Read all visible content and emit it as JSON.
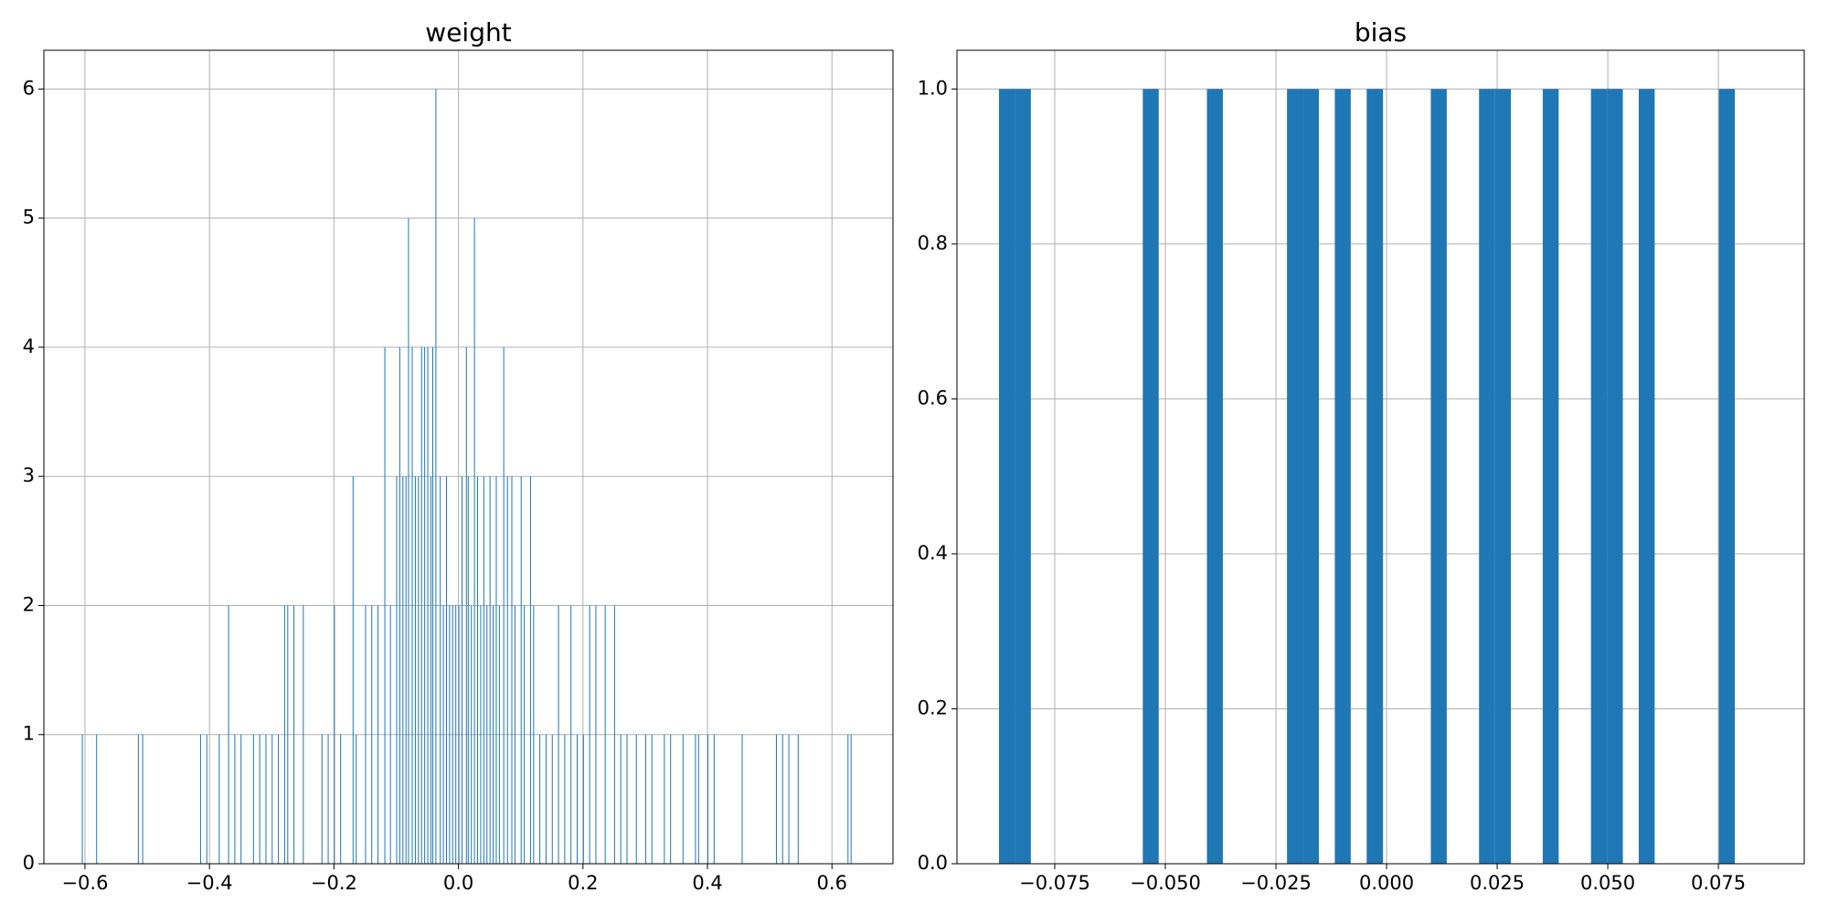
{
  "chart_data": [
    {
      "type": "histogram",
      "title": "weight",
      "color": "#1f77b4",
      "grid": true,
      "xlim": [
        -0.666,
        0.698
      ],
      "ylim": [
        0,
        6.3
      ],
      "xticks": [
        {
          "value": -0.6,
          "label": "−0.6"
        },
        {
          "value": -0.4,
          "label": "−0.4"
        },
        {
          "value": -0.2,
          "label": "−0.2"
        },
        {
          "value": 0,
          "label": "0.0"
        },
        0.2,
        0.4,
        0.6
      ],
      "yticks": [
        0,
        1,
        2,
        3,
        4,
        5,
        6
      ],
      "bins": [
        -0.605,
        -0.6038,
        -0.582,
        -0.5808,
        -0.515,
        -0.5138,
        -0.508,
        -0.5068,
        -0.415,
        -0.4138,
        -0.405,
        -0.4038,
        -0.385,
        -0.3838,
        -0.37,
        -0.3688,
        -0.36,
        -0.3588,
        -0.35,
        -0.3488,
        -0.33,
        -0.3288,
        -0.32,
        -0.3188,
        -0.31,
        -0.3088,
        -0.3,
        -0.2988,
        -0.29,
        -0.2888,
        -0.28,
        -0.2788,
        -0.275,
        -0.2738,
        -0.265,
        -0.2638,
        -0.25,
        -0.2488,
        -0.22,
        -0.2188,
        -0.21,
        -0.2088,
        -0.2,
        -0.1988,
        -0.19,
        -0.1888,
        -0.17,
        -0.1688,
        -0.165,
        -0.1638,
        -0.15,
        -0.1488,
        -0.14,
        -0.1388,
        -0.13,
        -0.1288,
        -0.119,
        -0.1178,
        -0.11,
        -0.1088,
        -0.1,
        -0.0988,
        -0.095,
        -0.0938,
        -0.09,
        -0.0888,
        -0.085,
        -0.0838,
        -0.081,
        -0.0798,
        -0.075,
        -0.0738,
        -0.07,
        -0.0688,
        -0.065,
        -0.0638,
        -0.06,
        -0.0588,
        -0.055,
        -0.0538,
        -0.05,
        -0.0488,
        -0.045,
        -0.0438,
        -0.042,
        -0.0408,
        -0.037,
        -0.0358,
        -0.03,
        -0.0288,
        -0.025,
        -0.0238,
        -0.02,
        -0.0188,
        -0.015,
        -0.0138,
        -0.01,
        -0.0088,
        -0.005,
        -0.0038,
        0,
        0.0012,
        0.005,
        0.0062,
        0.012,
        0.0132,
        0.015,
        0.0162,
        0.02,
        0.0212,
        0.025,
        0.0262,
        0.03,
        0.0312,
        0.035,
        0.0362,
        0.04,
        0.0412,
        0.045,
        0.0462,
        0.05,
        0.0512,
        0.055,
        0.0562,
        0.06,
        0.0612,
        0.065,
        0.0662,
        0.072,
        0.0732,
        0.078,
        0.0792,
        0.085,
        0.0862,
        0.09,
        0.0912,
        0.1,
        0.1012,
        0.105,
        0.1062,
        0.115,
        0.1162,
        0.12,
        0.1212,
        0.13,
        0.1312,
        0.14,
        0.1412,
        0.15,
        0.1512,
        0.16,
        0.1612,
        0.17,
        0.1712,
        0.18,
        0.1812,
        0.19,
        0.1912,
        0.2,
        0.2012,
        0.21,
        0.2112,
        0.22,
        0.2212,
        0.235,
        0.2362,
        0.25,
        0.2512,
        0.26,
        0.2612,
        0.27,
        0.2712,
        0.285,
        0.2862,
        0.3,
        0.3012,
        0.31,
        0.3112,
        0.33,
        0.3312,
        0.34,
        0.3412,
        0.36,
        0.3612,
        0.38,
        0.3812,
        0.385,
        0.3862,
        0.4,
        0.4012,
        0.41,
        0.4112,
        0.455,
        0.4562,
        0.51,
        0.5112,
        0.52,
        0.5212,
        0.53,
        0.5312,
        0.545,
        0.5462,
        0.625,
        0.6262,
        0.63,
        0.6312
      ],
      "counts": [
        1,
        0,
        1,
        0,
        1,
        0,
        1,
        0,
        1,
        0,
        1,
        0,
        1,
        0,
        2,
        0,
        1,
        0,
        1,
        0,
        1,
        0,
        1,
        0,
        1,
        0,
        1,
        0,
        1,
        0,
        2,
        0,
        2,
        0,
        2,
        0,
        2,
        0,
        1,
        0,
        1,
        0,
        2,
        0,
        1,
        0,
        3,
        0,
        1,
        0,
        2,
        0,
        2,
        0,
        2,
        0,
        4,
        0,
        2,
        0,
        3,
        0,
        4,
        0,
        3,
        0,
        3,
        0,
        5,
        0,
        4,
        0,
        3,
        0,
        3,
        0,
        4,
        0,
        4,
        0,
        4,
        0,
        3,
        0,
        4,
        0,
        6,
        0,
        3,
        0,
        2,
        0,
        3,
        0,
        2,
        0,
        2,
        0,
        2,
        0,
        2,
        0,
        3,
        0,
        4,
        0,
        3,
        0,
        2,
        0,
        5,
        0,
        3,
        0,
        2,
        0,
        3,
        0,
        2,
        0,
        3,
        0,
        2,
        0,
        3,
        0,
        2,
        0,
        4,
        0,
        3,
        0,
        3,
        0,
        2,
        0,
        3,
        0,
        2,
        0,
        3,
        0,
        2,
        0,
        1,
        0,
        1,
        0,
        1,
        0,
        2,
        0,
        1,
        0,
        2,
        0,
        1,
        0,
        1,
        0,
        2,
        0,
        2,
        0,
        2,
        0,
        2,
        0,
        1,
        0,
        1,
        0,
        1,
        0,
        1,
        0,
        1,
        0,
        1,
        0,
        1,
        0,
        1,
        0,
        1,
        0,
        1,
        0,
        1,
        0,
        1,
        0,
        1,
        0,
        1,
        0,
        1,
        0,
        1,
        0,
        1,
        0,
        1,
        0,
        1
      ]
    },
    {
      "type": "histogram",
      "title": "bias",
      "color": "#1f77b4",
      "grid": true,
      "xlim": [
        -0.0971,
        0.0944
      ],
      "ylim": [
        0,
        1.05
      ],
      "xticks": [
        {
          "value": -0.075,
          "label": "−0.075"
        },
        {
          "value": -0.05,
          "label": "−0.050"
        },
        {
          "value": -0.025,
          "label": "−0.025"
        },
        {
          "value": 0,
          "label": "0.000"
        },
        0.025,
        {
          "value": 0.05,
          "label": "0.050"
        },
        0.075
      ],
      "yticks": [
        {
          "value": 0,
          "label": "0.0"
        },
        0.2,
        0.4,
        0.6,
        0.8,
        {
          "value": 1,
          "label": "1.0"
        }
      ],
      "bins": [
        -0.0876,
        -0.084,
        -0.0804,
        -0.0767,
        -0.0731,
        -0.0695,
        -0.0659,
        -0.0623,
        -0.0587,
        -0.0551,
        -0.0515,
        -0.0478,
        -0.0442,
        -0.0406,
        -0.037,
        -0.0334,
        -0.0298,
        -0.0261,
        -0.0225,
        -0.0189,
        -0.0153,
        -0.0117,
        -0.0081,
        -0.0045,
        -0.0008,
        0.0028,
        0.0064,
        0.01,
        0.0136,
        0.0172,
        0.0209,
        0.0245,
        0.0281,
        0.0317,
        0.0353,
        0.0389,
        0.0426,
        0.0462,
        0.0498,
        0.0534,
        0.057,
        0.0606,
        0.0642,
        0.0679,
        0.0715,
        0.0751,
        0.0787
      ],
      "counts": [
        1,
        1,
        0,
        0,
        0,
        0,
        0,
        0,
        0,
        1,
        0,
        0,
        0,
        1,
        0,
        0,
        0,
        0,
        1,
        1,
        0,
        1,
        0,
        1,
        0,
        0,
        0,
        1,
        0,
        0,
        1,
        1,
        0,
        0,
        1,
        0,
        0,
        1,
        1,
        0,
        1,
        0,
        0,
        0,
        0,
        1
      ]
    }
  ]
}
